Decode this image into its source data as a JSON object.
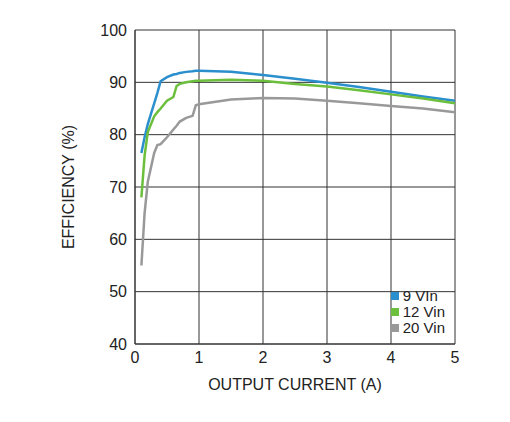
{
  "chart_data": {
    "type": "line",
    "x_label": "OUTPUT CURRENT (A)",
    "y_label": "EFFICIENCY (%)",
    "x": [
      0.1,
      0.15,
      0.2,
      0.3,
      0.35,
      0.4,
      0.5,
      0.6,
      0.65,
      0.7,
      0.8,
      0.9,
      0.95,
      1,
      1.5,
      2,
      2.5,
      3,
      3.5,
      4,
      4.5,
      5
    ],
    "series": [
      {
        "name": "9 VIn",
        "color": "#2b8fcd",
        "values": [
          76.5,
          79.5,
          82,
          86,
          88,
          90.2,
          91,
          91.5,
          91.6,
          91.8,
          92,
          92.1,
          92.2,
          92.2,
          92,
          91.4,
          90.7,
          89.9,
          89.1,
          88.2,
          87.3,
          86.5
        ]
      },
      {
        "name": "12 Vin",
        "color": "#6cbf3c",
        "values": [
          68,
          76,
          80.5,
          83.5,
          84.3,
          85,
          86.5,
          87.2,
          89.3,
          89.7,
          90,
          90.2,
          90.3,
          90.3,
          90.5,
          90.3,
          89.7,
          89.2,
          88.5,
          87.7,
          86.9,
          86
        ]
      },
      {
        "name": "20 Vin",
        "color": "#999999",
        "values": [
          55,
          65,
          71,
          76.5,
          78,
          78.2,
          79.5,
          81,
          81.7,
          82.5,
          83.2,
          83.6,
          85.6,
          85.8,
          86.7,
          87,
          86.9,
          86.5,
          86,
          85.5,
          85,
          84.3
        ]
      }
    ],
    "xlim": [
      0,
      5
    ],
    "xticks": [
      0,
      1,
      2,
      3,
      4,
      5
    ],
    "ylim": [
      40,
      100
    ],
    "yticks": [
      40,
      50,
      60,
      70,
      80,
      90,
      100
    ],
    "grid": true,
    "legend": "lower right"
  }
}
